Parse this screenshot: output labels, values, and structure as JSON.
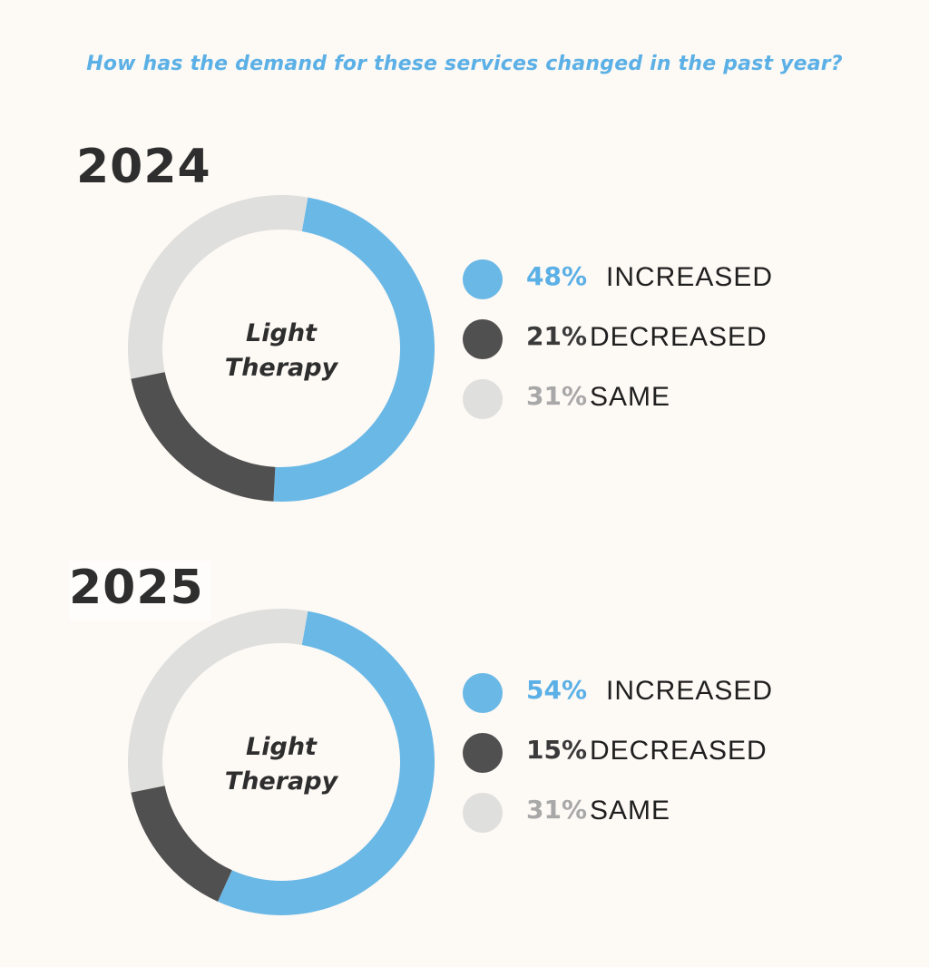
{
  "question": "How has the demand for these services changed in the past year?",
  "colors": {
    "increased": "#6ab8e6",
    "decreased": "#505050",
    "same": "#dfdfdd",
    "increased_text": "#5bb0e6",
    "decreased_text": "#3a3a3a",
    "same_text": "#a8a8a8"
  },
  "chart_data": [
    {
      "type": "pie",
      "title": "2024",
      "center_label": [
        "Light",
        "Therapy"
      ],
      "categories": [
        "INCREASED",
        "DECREASED",
        "SAME"
      ],
      "values": [
        48,
        21,
        31
      ],
      "value_labels": [
        "48%",
        "21%",
        "31%"
      ]
    },
    {
      "type": "pie",
      "title": "2025",
      "center_label": [
        "Light",
        "Therapy"
      ],
      "categories": [
        "INCREASED",
        "DECREASED",
        "SAME"
      ],
      "values": [
        54,
        15,
        31
      ],
      "value_labels": [
        "54%",
        "15%",
        "31%"
      ]
    }
  ]
}
